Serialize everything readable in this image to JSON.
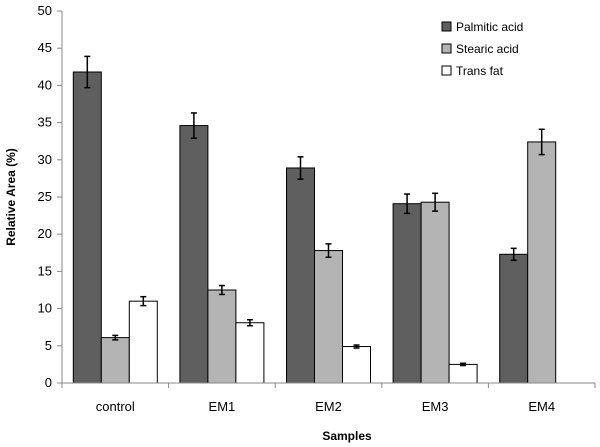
{
  "chart_data": {
    "type": "bar",
    "title": "",
    "xlabel": "Samples",
    "ylabel": "Relative Area (%)",
    "ylim": [
      0,
      50
    ],
    "ytick_step": 5,
    "grid": false,
    "legend_position": "top-right",
    "categories": [
      "control",
      "EM1",
      "EM2",
      "EM3",
      "EM4"
    ],
    "series": [
      {
        "name": "Palmitic acid",
        "color": "#5f5f5f",
        "values": [
          41.8,
          34.6,
          28.9,
          24.1,
          17.3
        ],
        "errors": [
          2.1,
          1.7,
          1.5,
          1.3,
          0.8
        ]
      },
      {
        "name": "Stearic acid",
        "color": "#b4b4b4",
        "values": [
          6.1,
          12.5,
          17.8,
          24.3,
          32.4
        ],
        "errors": [
          0.3,
          0.6,
          0.9,
          1.2,
          1.7
        ]
      },
      {
        "name": "Trans fat",
        "color": "#ffffff",
        "values": [
          11.0,
          8.1,
          4.9,
          2.5,
          null
        ],
        "errors": [
          0.6,
          0.4,
          0.2,
          0.15,
          null
        ]
      }
    ]
  }
}
